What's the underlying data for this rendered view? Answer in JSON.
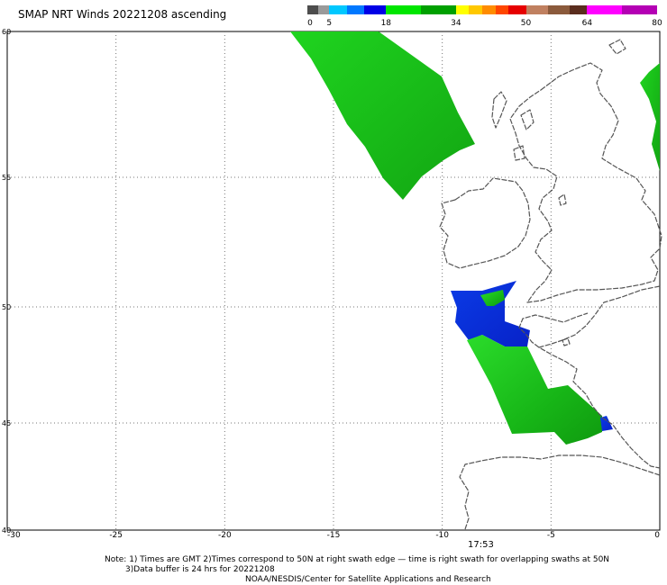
{
  "title": "SMAP NRT Winds 20221208 ascending",
  "colorbar": {
    "labels": [
      {
        "text": "0",
        "value": 0
      },
      {
        "text": "5",
        "value": 5
      },
      {
        "text": "18",
        "value": 18
      },
      {
        "text": "34",
        "value": 34
      },
      {
        "text": "50",
        "value": 50
      },
      {
        "text": "64",
        "value": 64
      },
      {
        "text": "80",
        "value": 80
      }
    ],
    "segments": [
      {
        "from": 0,
        "to": 2.5,
        "color": "#4d4d4d"
      },
      {
        "from": 2.5,
        "to": 5,
        "color": "#9a9a9a"
      },
      {
        "from": 5,
        "to": 9,
        "color": "#00c8ff"
      },
      {
        "from": 9,
        "to": 13,
        "color": "#0078ff"
      },
      {
        "from": 13,
        "to": 18,
        "color": "#0000e6"
      },
      {
        "from": 18,
        "to": 26,
        "color": "#00e600"
      },
      {
        "from": 26,
        "to": 34,
        "color": "#00a000"
      },
      {
        "from": 34,
        "to": 37,
        "color": "#ffff00"
      },
      {
        "from": 37,
        "to": 40,
        "color": "#ffc800"
      },
      {
        "from": 40,
        "to": 43,
        "color": "#ff8c00"
      },
      {
        "from": 43,
        "to": 46,
        "color": "#ff4600"
      },
      {
        "from": 46,
        "to": 50,
        "color": "#e60000"
      },
      {
        "from": 50,
        "to": 55,
        "color": "#c08060"
      },
      {
        "from": 55,
        "to": 60,
        "color": "#8b5a3c"
      },
      {
        "from": 60,
        "to": 64,
        "color": "#5a2d1e"
      },
      {
        "from": 64,
        "to": 72,
        "color": "#ff00ff"
      },
      {
        "from": 72,
        "to": 80,
        "color": "#b400b4"
      }
    ]
  },
  "x_ticks": [
    {
      "text": "-30",
      "value": -30
    },
    {
      "text": "-25",
      "value": -25
    },
    {
      "text": "-20",
      "value": -20
    },
    {
      "text": "-15",
      "value": -15
    },
    {
      "text": "-10",
      "value": -10
    },
    {
      "text": "-5",
      "value": -5
    },
    {
      "text": "0",
      "value": 0
    }
  ],
  "y_ticks": [
    {
      "text": "60",
      "value": 60
    },
    {
      "text": "55",
      "value": 55
    },
    {
      "text": "50",
      "value": 50
    },
    {
      "text": "45",
      "value": 45
    },
    {
      "text": "40",
      "value": 40
    }
  ],
  "time_label": "17:53",
  "notes": [
    "Note: 1) Times are GMT 2)Times correspond to 50N at right swath edge — time is right swath for overlapping swaths at 50N",
    "3)Data buffer is 24 hrs for 20221208",
    "NOAA/NESDIS/Center for Satellite Applications and Research"
  ],
  "colors": {
    "swath_green": "#22cc22",
    "swath_green_dark": "#129e12",
    "swath_blue": "#0a2bdc",
    "coastline": "#555555",
    "grid": "#777777"
  }
}
